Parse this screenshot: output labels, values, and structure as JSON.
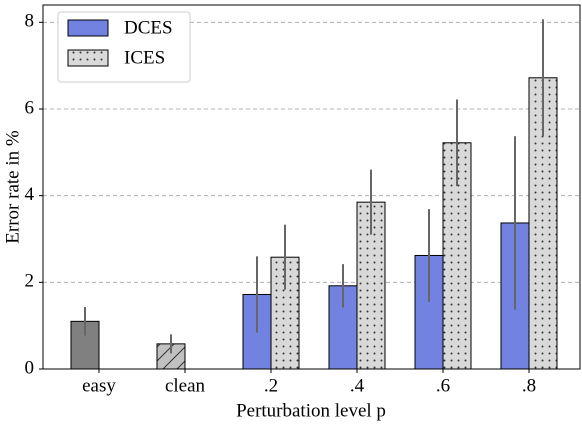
{
  "chart_data": {
    "type": "bar",
    "xlabel": "Perturbation level p",
    "ylabel": "Error rate in %",
    "categories": [
      "easy",
      "clean",
      ".2",
      ".4",
      ".6",
      ".8"
    ],
    "series": [
      {
        "color": "#808080",
        "hatch": "none",
        "values": [
          1.1,
          null,
          null,
          null,
          null,
          null
        ],
        "errors": [
          0.33,
          null,
          null,
          null,
          null,
          null
        ]
      },
      {
        "color": "#c0c0c0",
        "hatch": "diagonal",
        "values": [
          null,
          0.58,
          null,
          null,
          null,
          null
        ],
        "errors": [
          null,
          0.22,
          null,
          null,
          null,
          null
        ]
      },
      {
        "name": "DCES",
        "color": "#7282e0",
        "hatch": "none",
        "values": [
          null,
          null,
          1.72,
          1.92,
          2.62,
          3.37
        ],
        "errors": [
          null,
          null,
          0.88,
          0.5,
          1.07,
          2.0
        ]
      },
      {
        "name": "ICES",
        "color": "#d9d9d9",
        "hatch": "dots",
        "values": [
          null,
          null,
          2.58,
          3.85,
          5.22,
          6.72
        ],
        "errors": [
          null,
          null,
          0.75,
          0.75,
          1.0,
          1.35
        ]
      }
    ],
    "ylim": [
      0,
      8.4
    ],
    "yticks": [
      0,
      2,
      4,
      6,
      8
    ],
    "grid": true,
    "legend": "upper left"
  }
}
